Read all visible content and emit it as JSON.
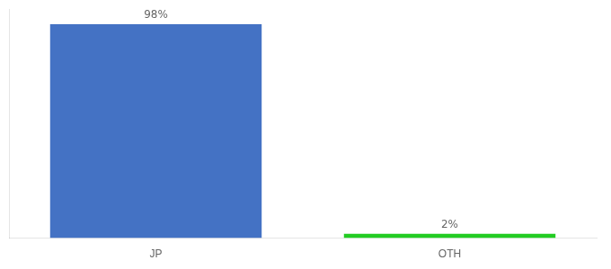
{
  "chart_data": {
    "type": "bar",
    "categories": [
      "JP",
      "OTH"
    ],
    "values": [
      98,
      2
    ],
    "value_labels": [
      "98%",
      "2%"
    ],
    "colors": [
      "#4472c4",
      "#22cc22"
    ],
    "ylim": [
      0,
      105
    ],
    "grid": false,
    "data_labels": true,
    "tick_labels": "x"
  }
}
